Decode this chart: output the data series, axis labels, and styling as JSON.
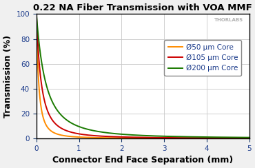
{
  "title": "0.22 NA Fiber Transmission with VOA MMF",
  "xlabel": "Connector End Face Separation (mm)",
  "ylabel": "Transmission (%)",
  "xlim": [
    0,
    5
  ],
  "ylim": [
    0,
    100
  ],
  "xticks": [
    0,
    1,
    2,
    3,
    4,
    5
  ],
  "yticks": [
    0,
    20,
    40,
    60,
    80,
    100
  ],
  "watermark": "THORLABS",
  "series": [
    {
      "label": "Ø50 μm Core",
      "color": "#FF8C00",
      "core_um": 50,
      "decay_k": 4.8
    },
    {
      "label": "Ø105 μm Core",
      "color": "#CC0000",
      "core_um": 105,
      "decay_k": 2.9
    },
    {
      "label": "Ø200 μm Core",
      "color": "#1A7A00",
      "core_um": 200,
      "decay_k": 1.75
    }
  ],
  "background_color": "#f0f0f0",
  "plot_bg_color": "#ffffff",
  "grid_color": "#c8c8c8",
  "title_fontsize": 9.5,
  "axis_label_fontsize": 9,
  "tick_fontsize": 7.5,
  "legend_fontsize": 7.5,
  "na": 0.22
}
